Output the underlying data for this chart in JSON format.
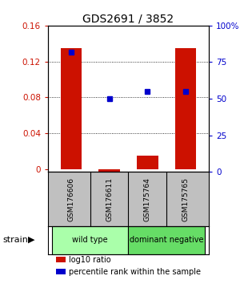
{
  "title": "GDS2691 / 3852",
  "samples": [
    "GSM176606",
    "GSM176611",
    "GSM175764",
    "GSM175765"
  ],
  "log10_ratio": [
    0.135,
    -0.008,
    0.015,
    0.135
  ],
  "percentile_rank": [
    82,
    50,
    55,
    55
  ],
  "bar_color": "#cc1100",
  "dot_color": "#0000cc",
  "ylim_left": [
    -0.003,
    0.16
  ],
  "ylim_right": [
    0,
    100
  ],
  "yticks_left": [
    0.0,
    0.04,
    0.08,
    0.12,
    0.16
  ],
  "yticks_right": [
    0,
    25,
    50,
    75,
    100
  ],
  "ytick_labels_left": [
    "0",
    "0.04",
    "0.08",
    "0.12",
    "0.16"
  ],
  "ytick_labels_right": [
    "0",
    "25",
    "50",
    "75",
    "100%"
  ],
  "groups": [
    {
      "label": "wild type",
      "samples": [
        0,
        1
      ],
      "color": "#aaffaa"
    },
    {
      "label": "dominant negative",
      "samples": [
        2,
        3
      ],
      "color": "#66dd66"
    }
  ],
  "strain_label": "strain",
  "legend_bar_label": "log10 ratio",
  "legend_dot_label": "percentile rank within the sample",
  "bar_width": 0.55,
  "sample_box_color": "#c0c0c0",
  "background_color": "#ffffff"
}
